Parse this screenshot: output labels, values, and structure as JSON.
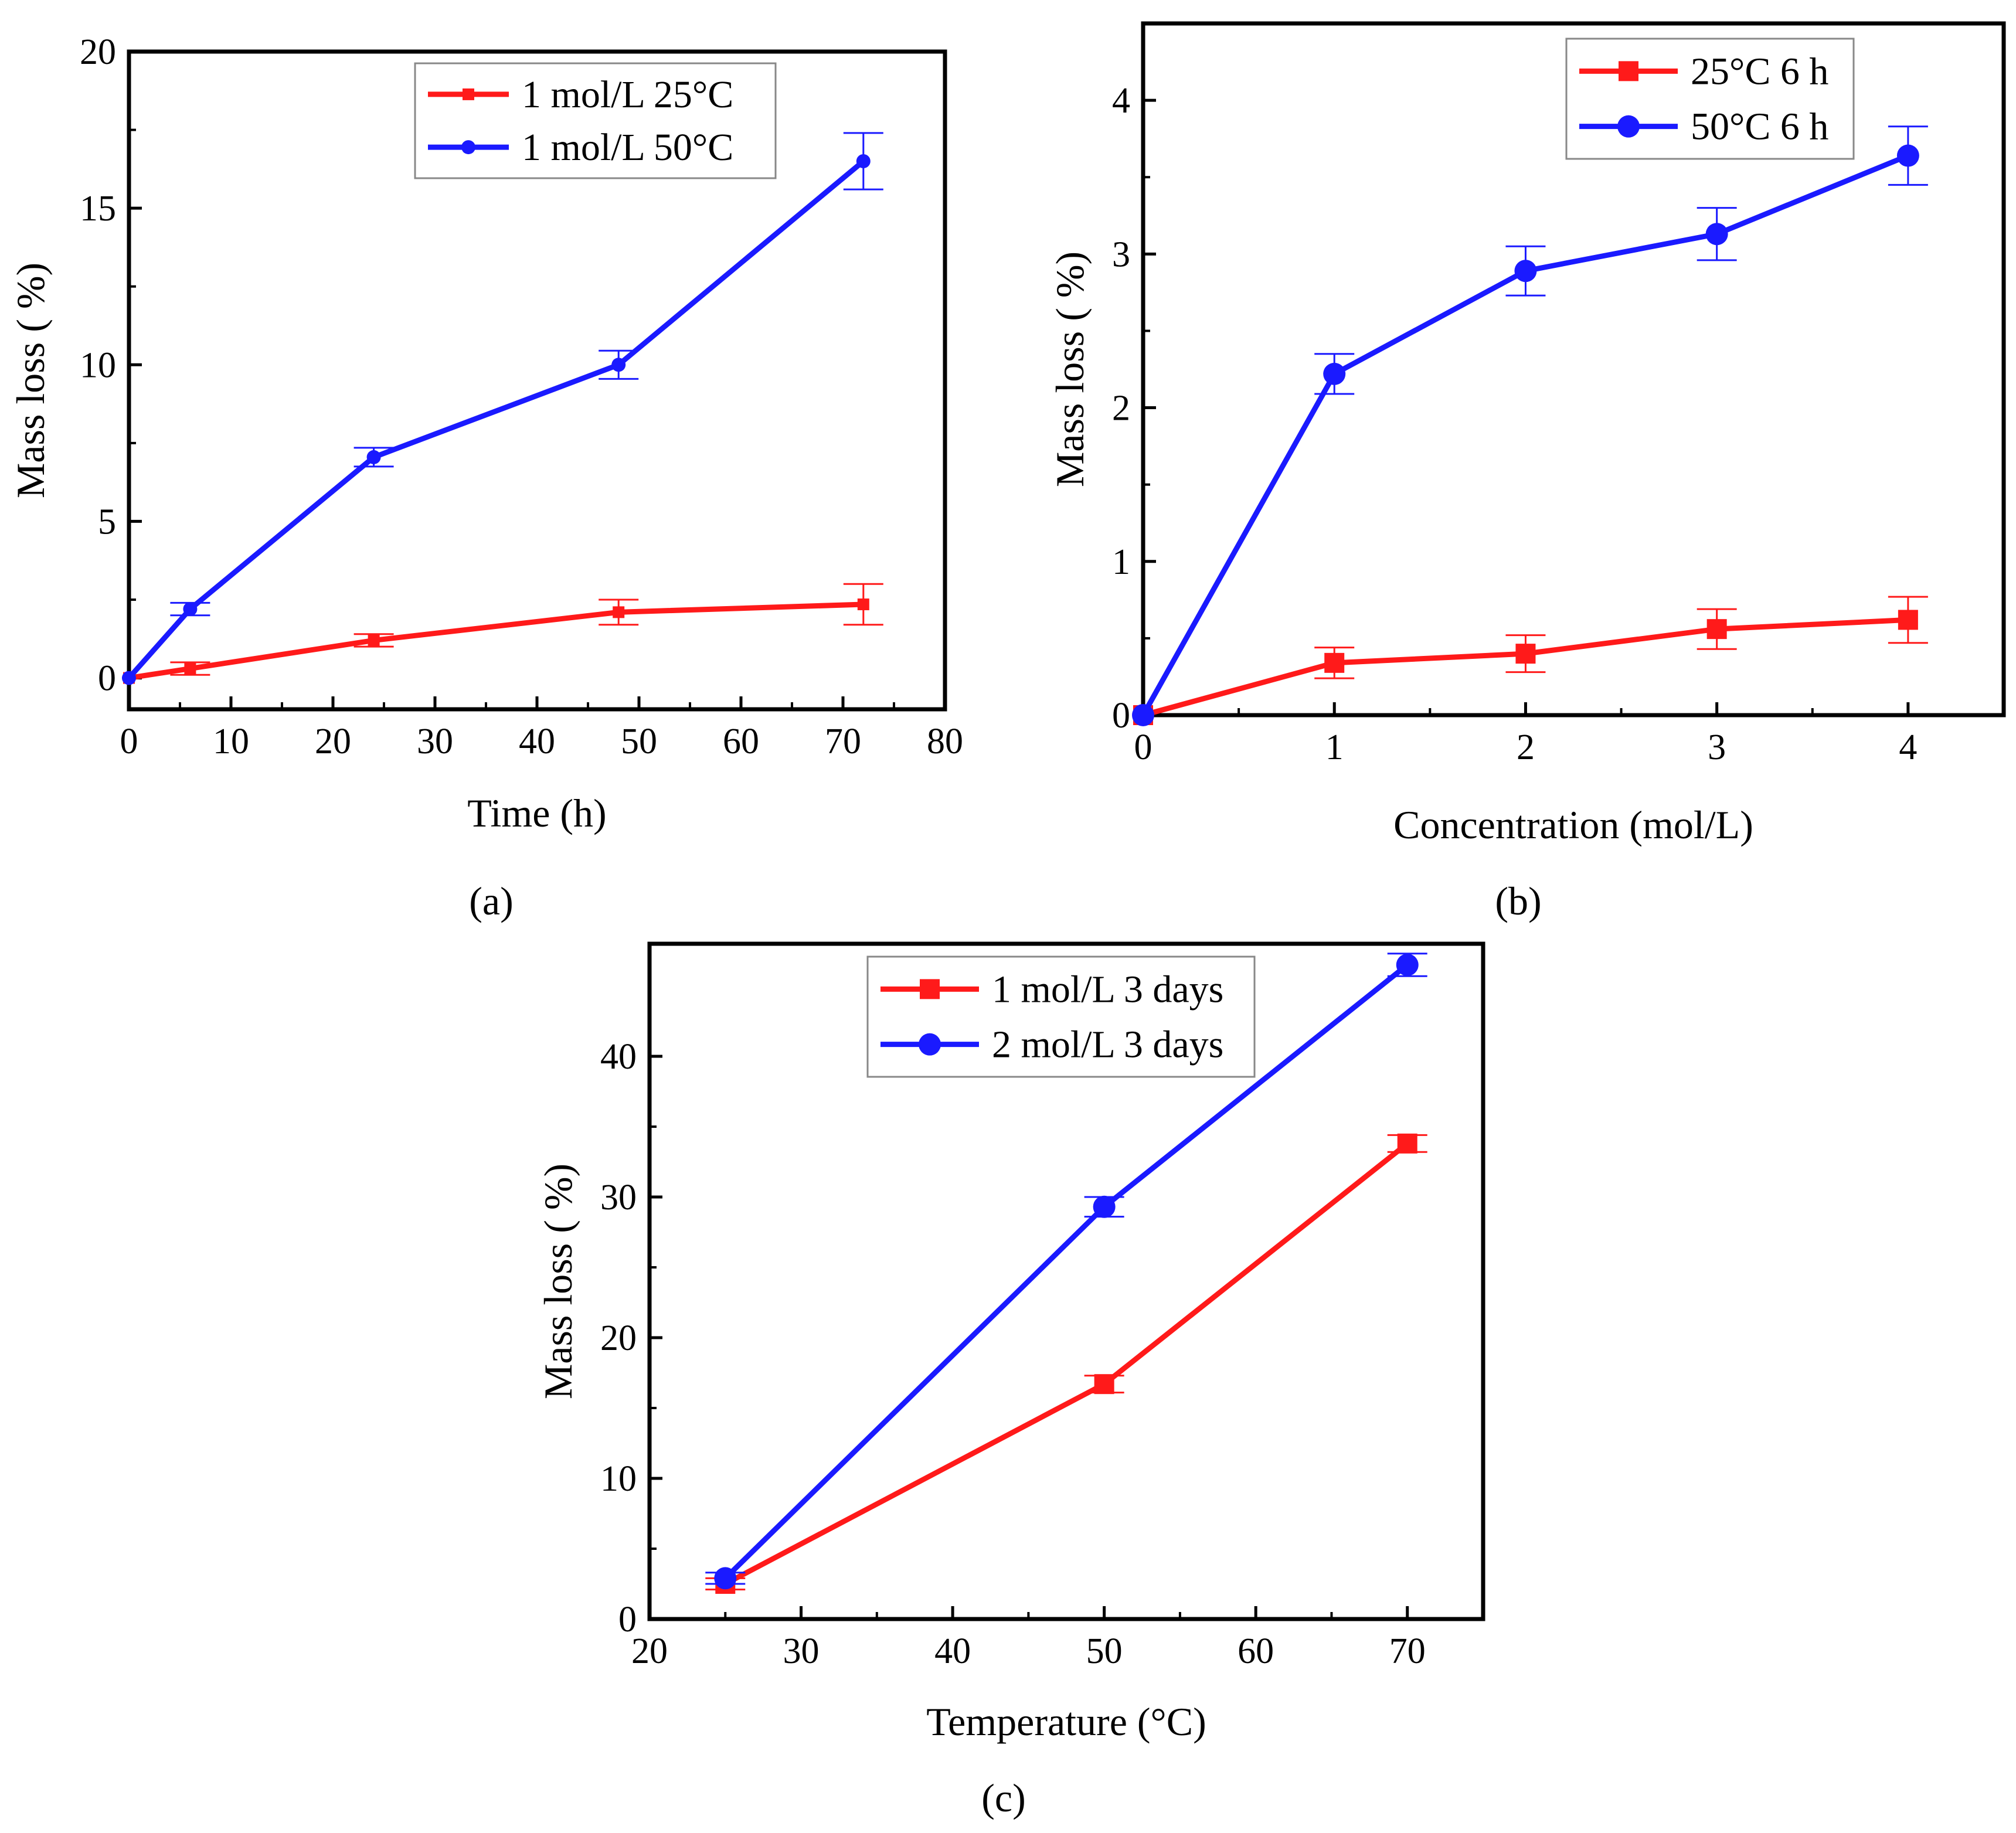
{
  "colors": {
    "red": "#ff1a1a",
    "blue": "#1a1aff",
    "axis": "#000000"
  },
  "chart_data": [
    {
      "panel_label": "(a)",
      "type": "line",
      "xlabel": "Time (h)",
      "ylabel": "Mass loss ( %)",
      "xlim": [
        0,
        80
      ],
      "ylim": [
        -1,
        20
      ],
      "xticks": [
        0,
        10,
        20,
        30,
        40,
        50,
        60,
        70,
        80
      ],
      "yticks": [
        0,
        5,
        10,
        15,
        20
      ],
      "legend_position": "top-right",
      "marker_size": "small",
      "series": [
        {
          "name": "1 mol/L 25°C",
          "color": "#ff1a1a",
          "marker": "square",
          "x": [
            0,
            6,
            24,
            48,
            72
          ],
          "y": [
            0,
            0.3,
            1.2,
            2.1,
            2.35
          ],
          "err": [
            0,
            0.2,
            0.2,
            0.4,
            0.65
          ]
        },
        {
          "name": "1 mol/L 50°C",
          "color": "#1a1aff",
          "marker": "circle",
          "x": [
            0,
            6,
            24,
            48,
            72
          ],
          "y": [
            0,
            2.2,
            7.05,
            10.0,
            16.5
          ],
          "err": [
            0,
            0.2,
            0.3,
            0.45,
            0.9
          ]
        }
      ]
    },
    {
      "panel_label": "(b)",
      "type": "line",
      "xlabel": "Concentration (mol/L)",
      "ylabel": "Mass loss ( %)",
      "xlim": [
        0,
        4.5
      ],
      "ylim": [
        0,
        4.5
      ],
      "xticks": [
        0,
        1,
        2,
        3,
        4
      ],
      "yticks": [
        0,
        1,
        2,
        3,
        4
      ],
      "legend_position": "top-right",
      "marker_size": "large",
      "series": [
        {
          "name": "25°C 6 h",
          "color": "#ff1a1a",
          "marker": "square",
          "x": [
            0,
            1,
            2,
            3,
            4
          ],
          "y": [
            0,
            0.34,
            0.4,
            0.56,
            0.62
          ],
          "err": [
            0,
            0.1,
            0.12,
            0.13,
            0.15
          ]
        },
        {
          "name": "50°C 6 h",
          "color": "#1a1aff",
          "marker": "circle",
          "x": [
            0,
            1,
            2,
            3,
            4
          ],
          "y": [
            0,
            2.22,
            2.89,
            3.13,
            3.64
          ],
          "err": [
            0,
            0.13,
            0.16,
            0.17,
            0.19
          ]
        }
      ]
    },
    {
      "panel_label": "(c)",
      "type": "line",
      "xlabel": "Temperature (°C)",
      "ylabel": "Mass loss ( %)",
      "xlim": [
        20,
        75
      ],
      "ylim": [
        0,
        48
      ],
      "xticks": [
        20,
        30,
        40,
        50,
        60,
        70
      ],
      "yticks": [
        0,
        10,
        20,
        30,
        40
      ],
      "legend_position": "top-center",
      "marker_size": "large",
      "series": [
        {
          "name": "1 mol/L 3 days",
          "color": "#ff1a1a",
          "marker": "square",
          "x": [
            25,
            50,
            70
          ],
          "y": [
            2.5,
            16.7,
            33.8
          ],
          "err": [
            0.4,
            0.6,
            0.6
          ]
        },
        {
          "name": "2 mol/L 3 days",
          "color": "#1a1aff",
          "marker": "circle",
          "x": [
            25,
            50,
            70
          ],
          "y": [
            2.9,
            29.3,
            46.5
          ],
          "err": [
            0.4,
            0.7,
            0.8
          ]
        }
      ]
    }
  ]
}
